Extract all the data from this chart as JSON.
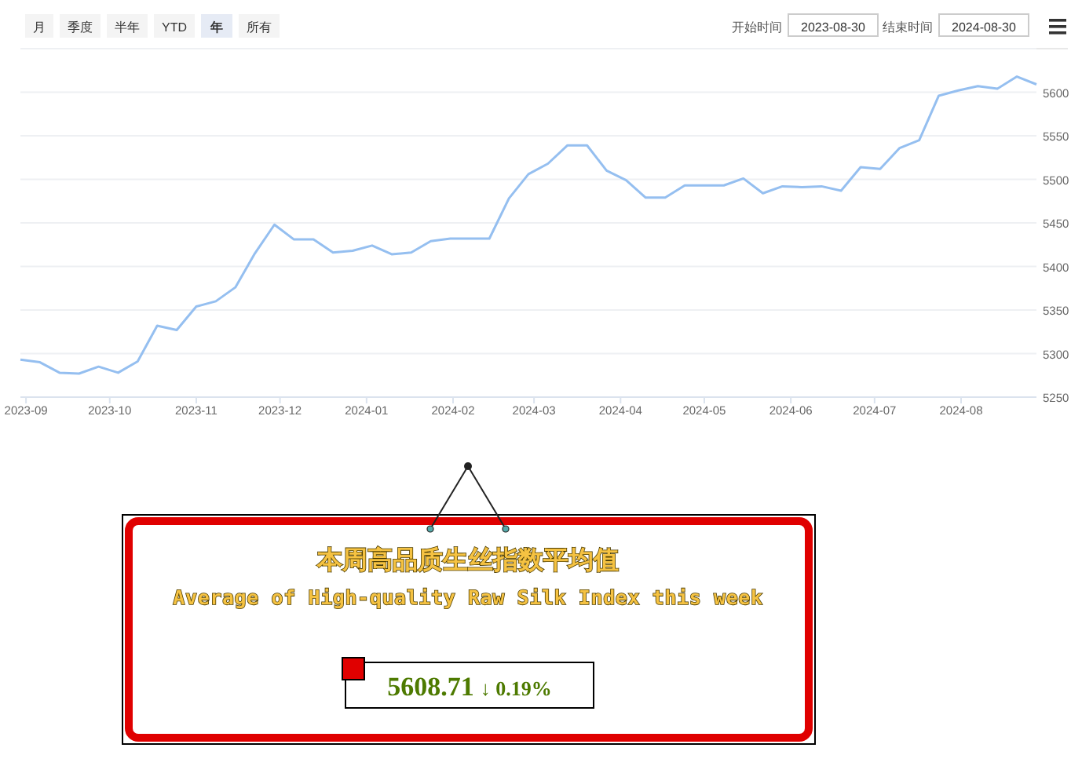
{
  "chart_data": [
    {
      "type": "line",
      "x": [
        "2023-08-30",
        "2023-09-06",
        "2023-09-13",
        "2023-09-20",
        "2023-09-27",
        "2023-10-04",
        "2023-10-11",
        "2023-10-18",
        "2023-10-25",
        "2023-11-01",
        "2023-11-08",
        "2023-11-15",
        "2023-11-22",
        "2023-11-29",
        "2023-12-06",
        "2023-12-13",
        "2023-12-20",
        "2023-12-27",
        "2024-01-03",
        "2024-01-10",
        "2024-01-17",
        "2024-01-24",
        "2024-01-31",
        "2024-02-07",
        "2024-02-14",
        "2024-02-21",
        "2024-02-28",
        "2024-03-06",
        "2024-03-13",
        "2024-03-20",
        "2024-03-27",
        "2024-04-03",
        "2024-04-10",
        "2024-04-17",
        "2024-04-24",
        "2024-05-01",
        "2024-05-08",
        "2024-05-15",
        "2024-05-22",
        "2024-05-29",
        "2024-06-05",
        "2024-06-12",
        "2024-06-19",
        "2024-06-26",
        "2024-07-03",
        "2024-07-10",
        "2024-07-17",
        "2024-07-24",
        "2024-07-31",
        "2024-08-07",
        "2024-08-14",
        "2024-08-21",
        "2024-08-28"
      ],
      "series": [
        {
          "color": "#95bff0",
          "values": [
            5293,
            5290,
            5278,
            5277,
            5285,
            5278,
            5291,
            5332,
            5327,
            5354,
            5360,
            5376,
            5415,
            5448,
            5431,
            5431,
            5416,
            5418,
            5424,
            5414,
            5416,
            5429,
            5432,
            5432,
            5432,
            5478,
            5506,
            5518,
            5539,
            5539,
            5510,
            5499,
            5479,
            5479,
            5493,
            5493,
            5493,
            5501,
            5484,
            5492,
            5491,
            5492,
            5487,
            5514,
            5512,
            5536,
            5545,
            5596,
            5602,
            5607,
            5604,
            5618,
            5609
          ]
        }
      ],
      "xlim": [
        "2023-08-30",
        "2024-08-28"
      ],
      "xticks": [
        {
          "value": "2023-09-01",
          "label": "2023-09"
        },
        {
          "value": "2023-10-01",
          "label": "2023-10"
        },
        {
          "value": "2023-11-01",
          "label": "2023-11"
        },
        {
          "value": "2023-12-01",
          "label": "2023-12"
        },
        {
          "value": "2024-01-01",
          "label": "2024-01"
        },
        {
          "value": "2024-02-01",
          "label": "2024-02"
        },
        {
          "value": "2024-03-01",
          "label": "2024-03"
        },
        {
          "value": "2024-04-01",
          "label": "2024-04"
        },
        {
          "value": "2024-05-01",
          "label": "2024-05"
        },
        {
          "value": "2024-06-01",
          "label": "2024-06"
        },
        {
          "value": "2024-07-01",
          "label": "2024-07"
        },
        {
          "value": "2024-08-01",
          "label": "2024-08"
        }
      ],
      "ylim": [
        5250,
        5650
      ],
      "yticks": [
        5250,
        5300,
        5350,
        5400,
        5450,
        5500,
        5550,
        5600,
        {
          "value": 5650,
          "label": null
        }
      ],
      "grid": "y",
      "marker": "none",
      "line_style": "solid",
      "annotations": [
        "月",
        "季度",
        "半年",
        "YTD",
        "年",
        "所有",
        "开始时间",
        "2023-08-30",
        "结束时间",
        "2024-08-30"
      ]
    },
    {
      "type": "other",
      "title": "本周高品质生丝指数平均值",
      "subtitle": "Average of High-quality Raw Silk Index this week",
      "annotations": [
        "5608.71",
        "↓ 0.19%"
      ]
    }
  ]
}
